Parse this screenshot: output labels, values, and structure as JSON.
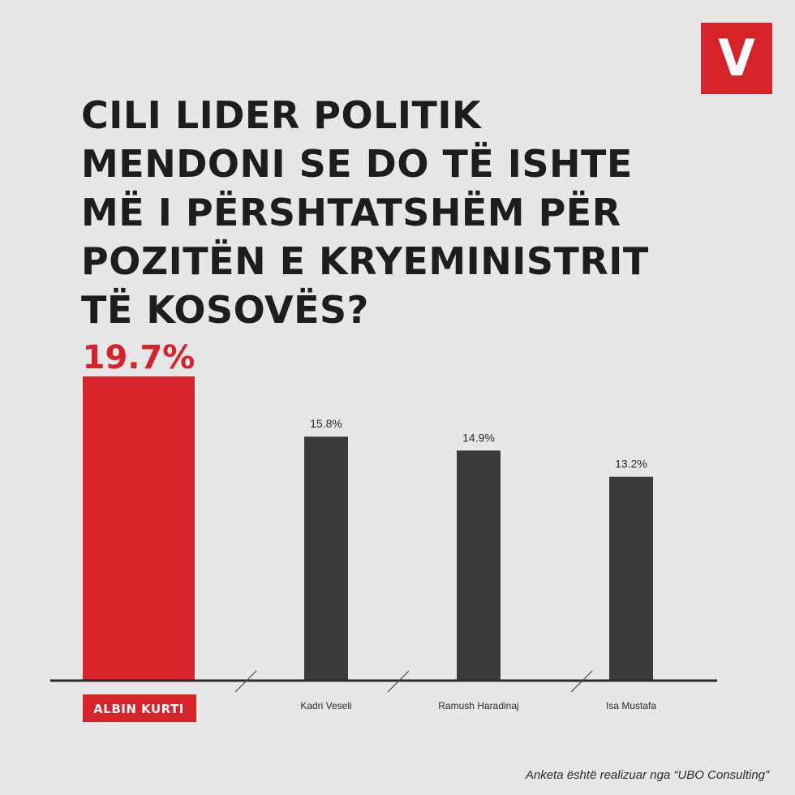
{
  "logo": {
    "letter": "V",
    "color": "#d62229"
  },
  "title": "CILI LIDER POLITIK\nMENDONI SE DO TË ISHTE\nMË I PËRSHTATSHËM PËR\nPOZITËN E KRYEMINISTRIT\nTË KOSOVËS?",
  "chart_data": {
    "type": "bar",
    "categories": [
      "ALBIN KURTI",
      "Kadri Veseli",
      "Ramush Haradinaj",
      "Isa Mustafa"
    ],
    "values": [
      19.7,
      15.8,
      14.9,
      13.2
    ],
    "value_labels": [
      "19.7%",
      "15.8%",
      "14.9%",
      "13.2%"
    ],
    "highlight_index": 0,
    "colors": {
      "highlight": "#d62229",
      "bar": "#3a3a3a",
      "axis": "#2b2b2b"
    },
    "ylim": [
      0,
      19.7
    ],
    "grid": false
  },
  "footer": "Anketa është realizuar nga “UBO Consulting”"
}
